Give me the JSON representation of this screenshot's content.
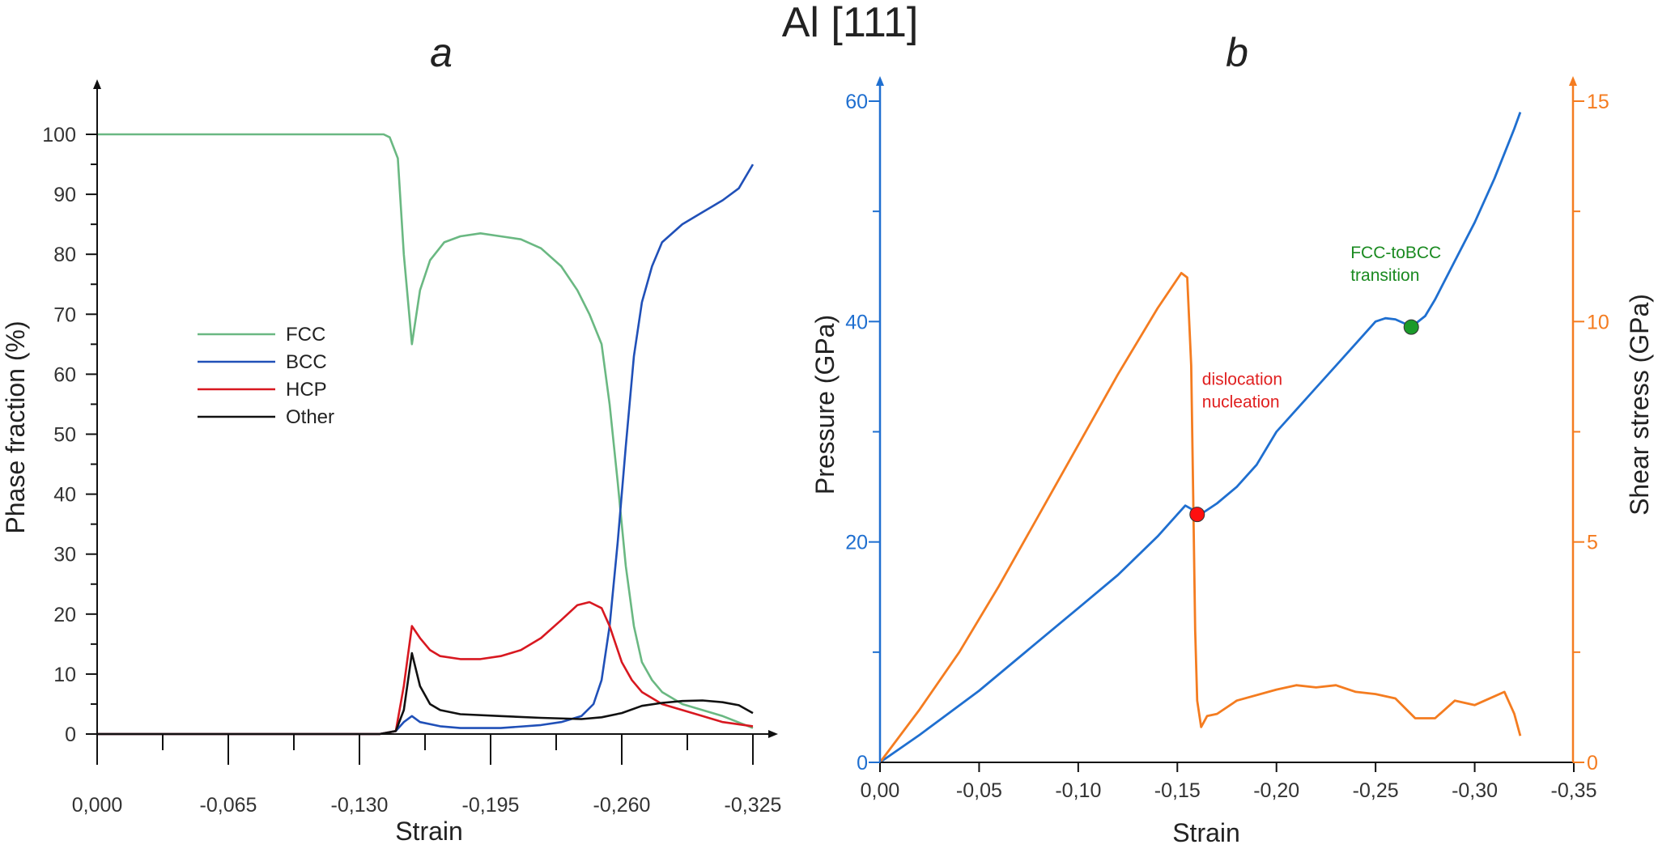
{
  "figure": {
    "title": "Al [111]"
  },
  "chart_data": [
    {
      "panel": "a",
      "type": "line",
      "xlabel": "Strain",
      "ylabel": "Phase fraction (%)",
      "xlim": [
        0.0,
        -0.325
      ],
      "ylim": [
        0,
        100
      ],
      "xticks": [
        0.0,
        -0.065,
        -0.13,
        -0.195,
        -0.26,
        -0.325
      ],
      "xtick_labels": [
        "0,000",
        "-0,065",
        "-0,130",
        "-0,195",
        "-0,260",
        "-0,325"
      ],
      "yticks": [
        0,
        10,
        20,
        30,
        40,
        50,
        60,
        70,
        80,
        90,
        100
      ],
      "ytick_labels": [
        "0",
        "10",
        "20",
        "30",
        "40",
        "50",
        "60",
        "70",
        "80",
        "90",
        "100"
      ],
      "legend": "center-left",
      "series": [
        {
          "name": "FCC",
          "color": "#6ab882",
          "x": [
            0.0,
            -0.1,
            -0.142,
            -0.145,
            -0.149,
            -0.152,
            -0.156,
            -0.16,
            -0.165,
            -0.172,
            -0.18,
            -0.19,
            -0.2,
            -0.21,
            -0.22,
            -0.23,
            -0.238,
            -0.244,
            -0.25,
            -0.254,
            -0.258,
            -0.262,
            -0.266,
            -0.27,
            -0.275,
            -0.28,
            -0.29,
            -0.3,
            -0.31,
            -0.325
          ],
          "y": [
            100,
            100,
            100,
            99.5,
            96,
            80,
            65,
            74,
            79,
            82,
            83,
            83.5,
            83,
            82.5,
            81,
            78,
            74,
            70,
            65,
            55,
            42,
            28,
            18,
            12,
            9,
            7,
            5,
            4,
            3,
            1
          ]
        },
        {
          "name": "BCC",
          "color": "#2050b8",
          "x": [
            0.0,
            -0.14,
            -0.148,
            -0.152,
            -0.156,
            -0.16,
            -0.17,
            -0.18,
            -0.2,
            -0.22,
            -0.23,
            -0.24,
            -0.246,
            -0.25,
            -0.254,
            -0.258,
            -0.262,
            -0.266,
            -0.27,
            -0.275,
            -0.28,
            -0.29,
            -0.3,
            -0.31,
            -0.318,
            -0.325
          ],
          "y": [
            0,
            0,
            0.5,
            2,
            3,
            2,
            1.3,
            1,
            1,
            1.5,
            2,
            3,
            5,
            9,
            18,
            32,
            48,
            63,
            72,
            78,
            82,
            85,
            87,
            89,
            91,
            95
          ]
        },
        {
          "name": "HCP",
          "color": "#d81820",
          "x": [
            0.0,
            -0.14,
            -0.148,
            -0.152,
            -0.156,
            -0.16,
            -0.165,
            -0.17,
            -0.18,
            -0.19,
            -0.2,
            -0.21,
            -0.22,
            -0.23,
            -0.238,
            -0.244,
            -0.25,
            -0.254,
            -0.26,
            -0.265,
            -0.27,
            -0.28,
            -0.29,
            -0.3,
            -0.31,
            -0.325
          ],
          "y": [
            0,
            0,
            0.5,
            8,
            18,
            16,
            14,
            13,
            12.5,
            12.5,
            13,
            14,
            16,
            19,
            21.5,
            22,
            21,
            18,
            12,
            9,
            7,
            5,
            4,
            3,
            2,
            1.3
          ]
        },
        {
          "name": "Other",
          "color": "#111111",
          "x": [
            0.0,
            -0.14,
            -0.148,
            -0.152,
            -0.156,
            -0.16,
            -0.165,
            -0.17,
            -0.18,
            -0.2,
            -0.22,
            -0.24,
            -0.25,
            -0.26,
            -0.27,
            -0.28,
            -0.29,
            -0.3,
            -0.31,
            -0.318,
            -0.325
          ],
          "y": [
            0,
            0,
            0.5,
            4,
            13.5,
            8,
            5,
            4,
            3.3,
            3,
            2.7,
            2.5,
            2.8,
            3.5,
            4.7,
            5.2,
            5.5,
            5.6,
            5.3,
            4.8,
            3.5
          ]
        }
      ]
    },
    {
      "panel": "b",
      "type": "line",
      "xlabel": "Strain",
      "ylabel": "Pressure (GPa)",
      "y2label": "Shear stress (GPa)",
      "xlim": [
        0.0,
        -0.35
      ],
      "ylim": [
        0,
        60
      ],
      "y2lim": [
        0,
        15
      ],
      "xticks": [
        0.0,
        -0.05,
        -0.1,
        -0.15,
        -0.2,
        -0.25,
        -0.3,
        -0.35
      ],
      "xtick_labels": [
        "0,00",
        "-0,05",
        "-0,10",
        "-0,15",
        "-0,20",
        "-0,25",
        "-0,30",
        "-0,35"
      ],
      "yticks": [
        0,
        20,
        40,
        60
      ],
      "ytick_labels": [
        "0",
        "20",
        "40",
        "60"
      ],
      "y2ticks": [
        0,
        5,
        10,
        15
      ],
      "y2tick_labels": [
        "0",
        "5",
        "10",
        "15"
      ],
      "axis_color": "#1f6fd0",
      "axis2_color": "#f47c20",
      "series": [
        {
          "name": "",
          "axis": "left",
          "color": "#1f6fd0",
          "x": [
            0.0,
            -0.02,
            -0.05,
            -0.08,
            -0.1,
            -0.12,
            -0.14,
            -0.15,
            -0.154,
            -0.157,
            -0.16,
            -0.17,
            -0.18,
            -0.19,
            -0.2,
            -0.22,
            -0.24,
            -0.25,
            -0.255,
            -0.26,
            -0.265,
            -0.268,
            -0.275,
            -0.28,
            -0.29,
            -0.3,
            -0.31,
            -0.32,
            -0.323
          ],
          "y": [
            0,
            2.5,
            6.5,
            11,
            14,
            17,
            20.5,
            22.5,
            23.3,
            23,
            22.3,
            23.5,
            25,
            27,
            30,
            34,
            38,
            40,
            40.3,
            40.2,
            39.8,
            39.5,
            40.5,
            42,
            45.5,
            49,
            53,
            57.5,
            59
          ]
        },
        {
          "name": "",
          "axis": "right",
          "color": "#f47c20",
          "x": [
            0.0,
            -0.02,
            -0.04,
            -0.06,
            -0.08,
            -0.1,
            -0.12,
            -0.14,
            -0.152,
            -0.155,
            -0.157,
            -0.158,
            -0.159,
            -0.16,
            -0.162,
            -0.165,
            -0.17,
            -0.18,
            -0.2,
            -0.21,
            -0.22,
            -0.23,
            -0.24,
            -0.25,
            -0.26,
            -0.27,
            -0.28,
            -0.29,
            -0.3,
            -0.31,
            -0.315,
            -0.32,
            -0.323
          ],
          "y": [
            0,
            1.2,
            2.5,
            4,
            5.6,
            7.2,
            8.8,
            10.3,
            11.1,
            11.0,
            9,
            6,
            3,
            1.4,
            0.8,
            1.05,
            1.1,
            1.4,
            1.65,
            1.75,
            1.7,
            1.75,
            1.6,
            1.55,
            1.45,
            1.0,
            1.0,
            1.4,
            1.3,
            1.5,
            1.6,
            1.1,
            0.6
          ]
        }
      ],
      "markers": [
        {
          "x": -0.16,
          "y": 22.5,
          "color": "#ff1010",
          "annotation": [
            "dislocation",
            "nucleation"
          ],
          "annotation_color": "#e02020"
        },
        {
          "x": -0.268,
          "y": 39.5,
          "color": "#1a9a2a",
          "annotation": [
            "FCC-toBCC",
            "transition"
          ],
          "annotation_color": "#1a8a20"
        }
      ]
    }
  ]
}
